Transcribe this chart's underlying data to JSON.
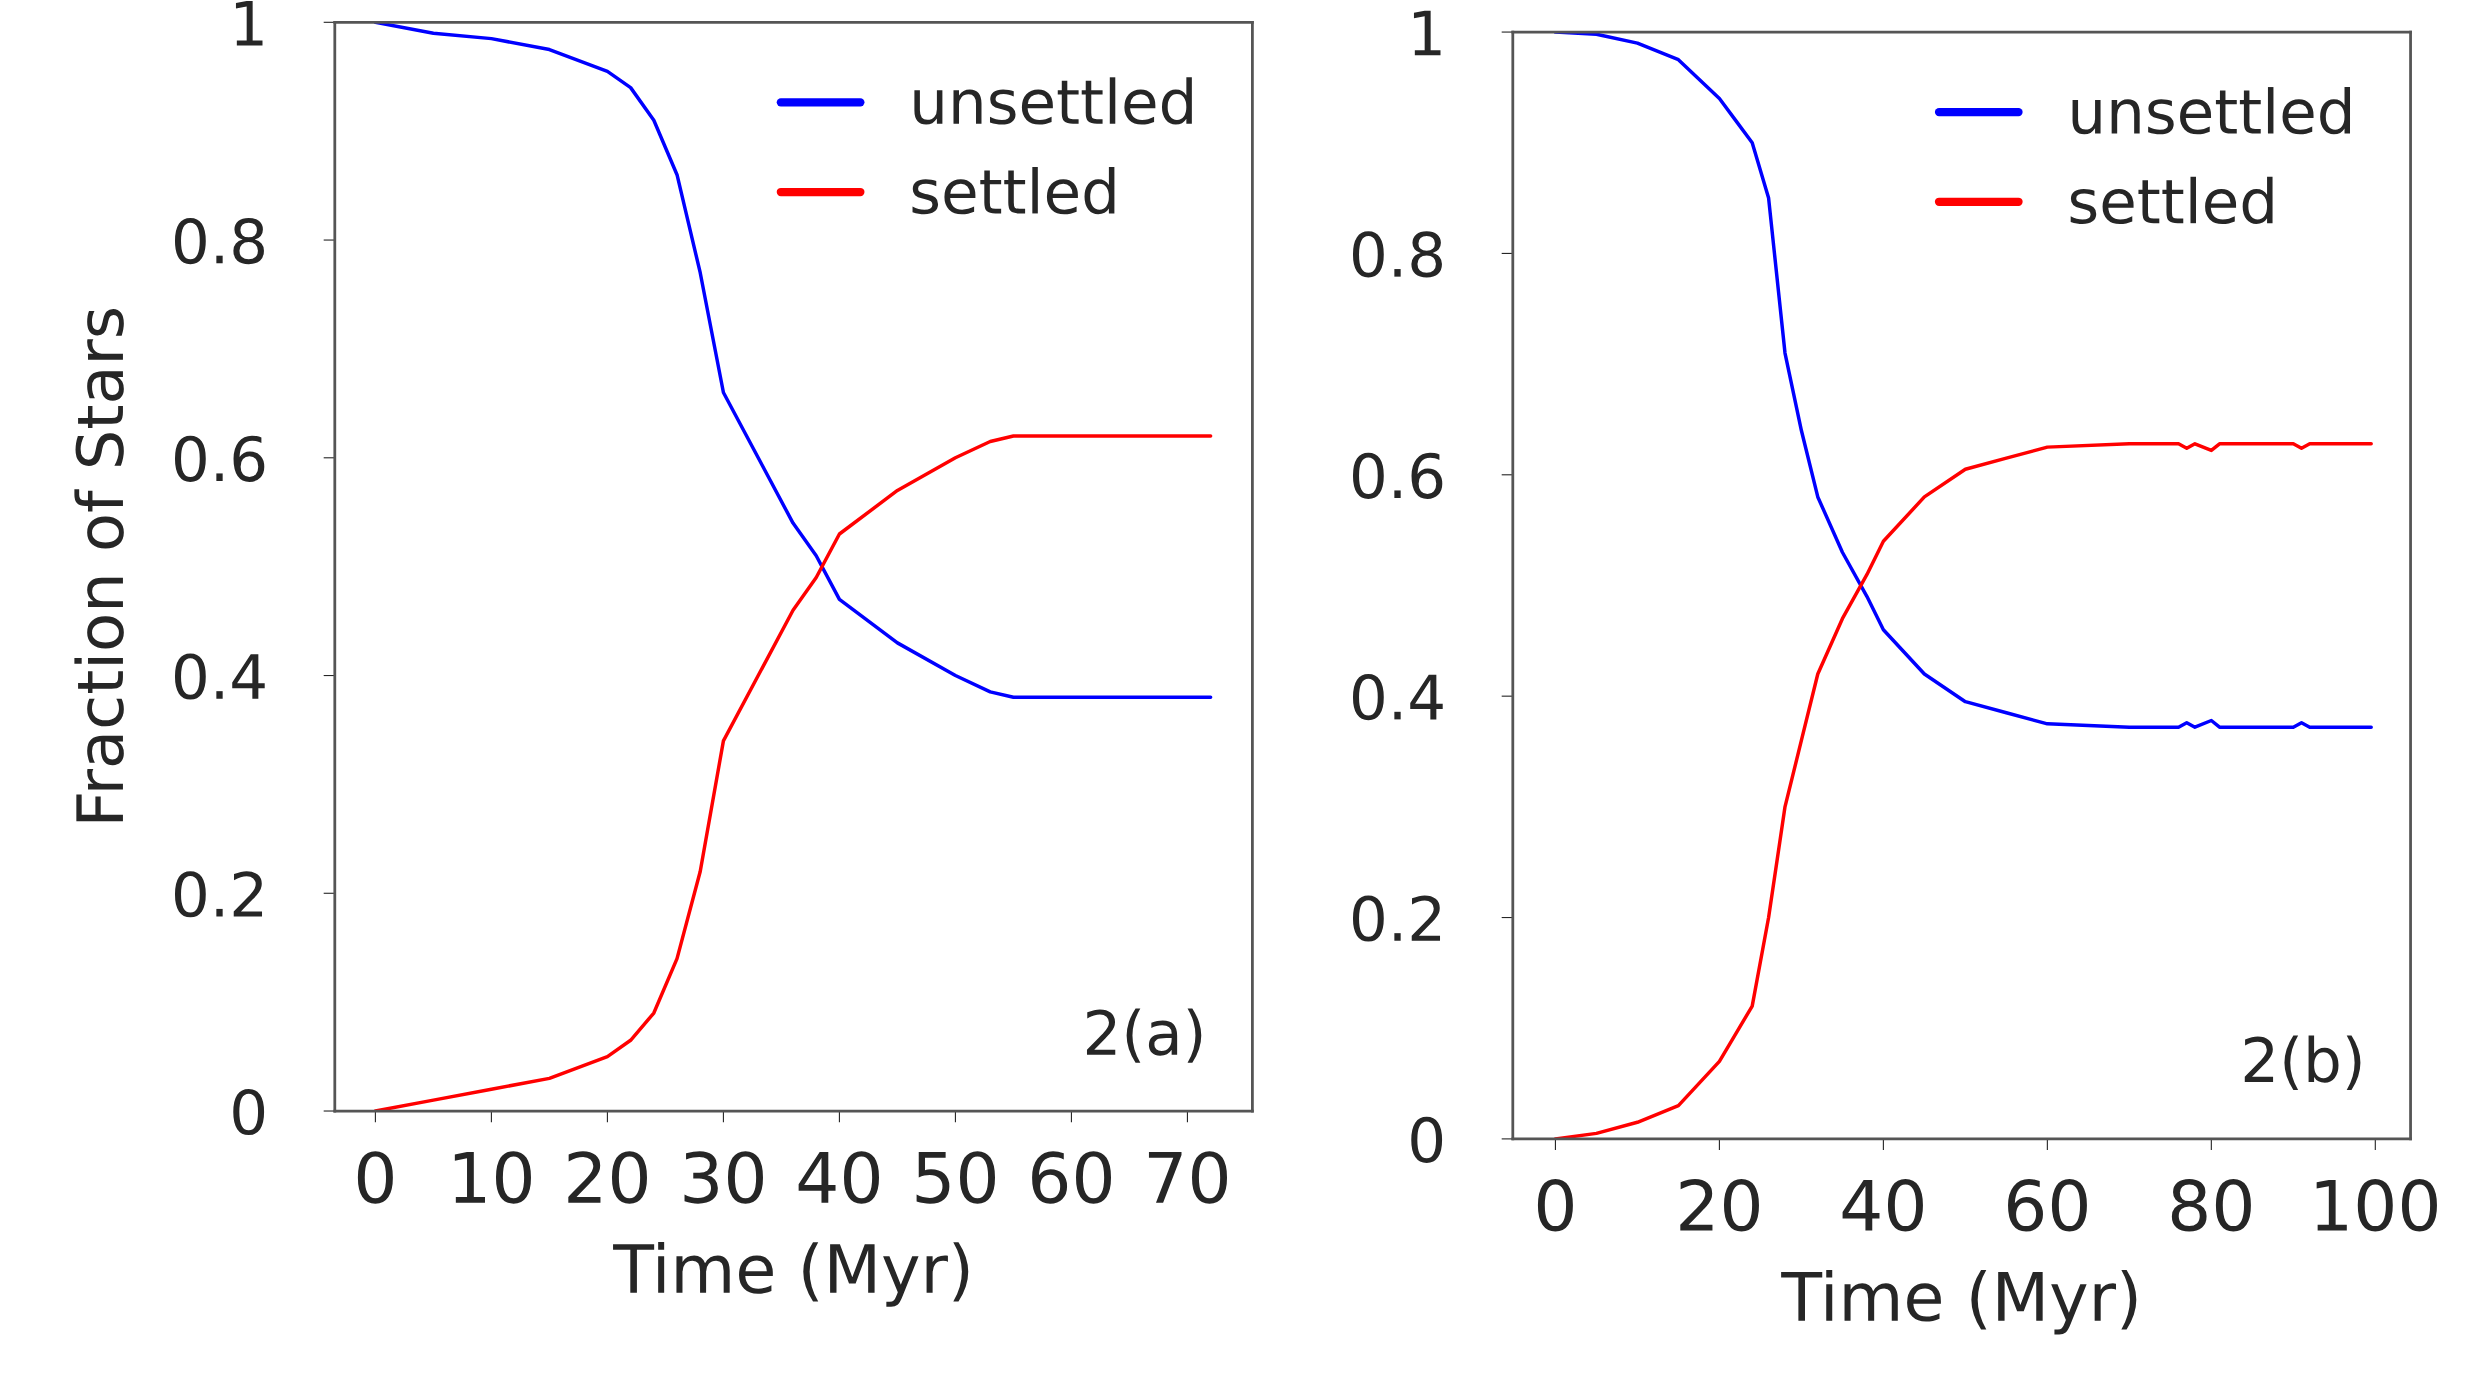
{
  "chart_data": [
    {
      "type": "line",
      "xlabel": "Time (Myr)",
      "ylabel": "Fraction of Stars",
      "xlim": [
        -3.5,
        75.6
      ],
      "ylim": [
        0,
        1
      ],
      "xticks": [
        0,
        10,
        20,
        30,
        40,
        50,
        60,
        70
      ],
      "yticks": [
        0,
        0.2,
        0.4,
        0.6,
        0.8,
        1
      ],
      "legend": "top right",
      "grid": false,
      "annotations": [
        "2(a)"
      ],
      "series": [
        {
          "name": "unsettled",
          "color": "#0000ff",
          "x": [
            0,
            5,
            10,
            15,
            20,
            22,
            24,
            26,
            28,
            30,
            33,
            36,
            38,
            40,
            45,
            50,
            53,
            55,
            72
          ],
          "values": [
            1.0,
            0.99,
            0.985,
            0.975,
            0.955,
            0.94,
            0.91,
            0.86,
            0.77,
            0.66,
            0.6,
            0.54,
            0.51,
            0.47,
            0.43,
            0.4,
            0.385,
            0.38,
            0.38
          ]
        },
        {
          "name": "settled",
          "color": "#ff0000",
          "x": [
            0,
            5,
            10,
            15,
            20,
            22,
            24,
            26,
            28,
            30,
            33,
            36,
            38,
            40,
            45,
            50,
            53,
            55,
            72
          ],
          "values": [
            0,
            0.01,
            0.02,
            0.03,
            0.05,
            0.065,
            0.09,
            0.14,
            0.22,
            0.34,
            0.4,
            0.46,
            0.49,
            0.53,
            0.57,
            0.6,
            0.615,
            0.62,
            0.62
          ]
        }
      ]
    },
    {
      "type": "line",
      "xlabel": "Time (Myr)",
      "xlim": [
        -5.2,
        104.3
      ],
      "ylim": [
        0,
        1
      ],
      "xticks": [
        0,
        20,
        40,
        60,
        80,
        100
      ],
      "yticks": [
        0,
        0.2,
        0.4,
        0.6,
        0.8,
        1
      ],
      "legend": "top right",
      "grid": false,
      "annotations": [
        "2(b)"
      ],
      "series": [
        {
          "name": "unsettled",
          "color": "#0000ff",
          "x": [
            0,
            5,
            10,
            15,
            20,
            22,
            24,
            26,
            28,
            30,
            32,
            35,
            38,
            40,
            45,
            50,
            55,
            60,
            70,
            76,
            77,
            78,
            80,
            81,
            90,
            91,
            92,
            99.5
          ],
          "values": [
            1.0,
            0.998,
            0.99,
            0.975,
            0.94,
            0.92,
            0.9,
            0.85,
            0.71,
            0.64,
            0.58,
            0.53,
            0.49,
            0.46,
            0.42,
            0.395,
            0.385,
            0.375,
            0.372,
            0.372,
            0.376,
            0.372,
            0.378,
            0.372,
            0.372,
            0.376,
            0.372,
            0.372
          ]
        },
        {
          "name": "settled",
          "color": "#ff0000",
          "x": [
            0,
            5,
            10,
            15,
            20,
            24,
            26,
            28,
            30,
            32,
            35,
            38,
            40,
            45,
            50,
            55,
            60,
            70,
            76,
            77,
            78,
            80,
            81,
            90,
            91,
            92,
            99.5
          ],
          "values": [
            0,
            0.005,
            0.015,
            0.03,
            0.07,
            0.12,
            0.2,
            0.3,
            0.36,
            0.42,
            0.47,
            0.51,
            0.54,
            0.58,
            0.605,
            0.615,
            0.625,
            0.628,
            0.628,
            0.624,
            0.628,
            0.622,
            0.628,
            0.628,
            0.624,
            0.628,
            0.628
          ]
        }
      ]
    }
  ]
}
